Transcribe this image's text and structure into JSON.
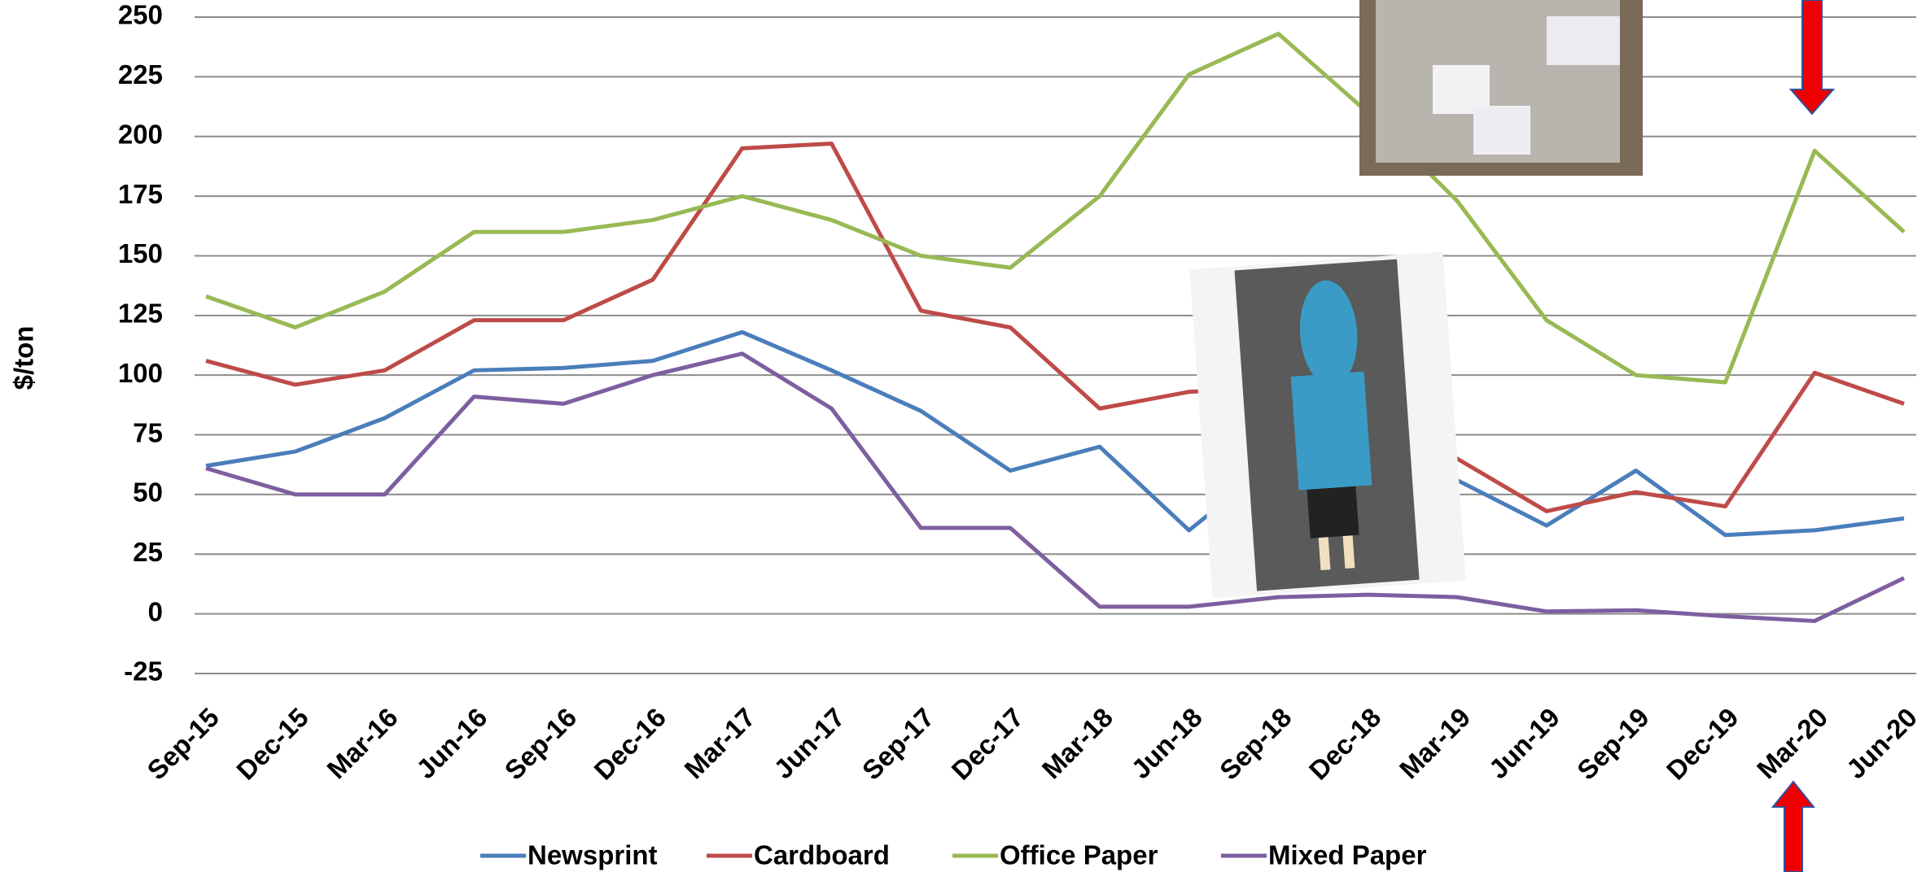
{
  "chart_data": {
    "type": "line",
    "ylabel": "$/ton",
    "categories": [
      "Sep-15",
      "Dec-15",
      "Mar-16",
      "Jun-16",
      "Sep-16",
      "Dec-16",
      "Mar-17",
      "Jun-17",
      "Sep-17",
      "Dec-17",
      "Mar-18",
      "Jun-18",
      "Sep-18",
      "Dec-18",
      "Mar-19",
      "Jun-19",
      "Sep-19",
      "Dec-19",
      "Mar-20",
      "Jun-20"
    ],
    "series": [
      {
        "name": "Newsprint",
        "color": "#4a7ebb",
        "values": [
          62,
          68,
          82,
          102,
          103,
          106,
          118,
          102,
          85,
          60,
          70,
          35,
          65,
          62,
          56,
          37,
          60,
          33,
          35,
          40
        ]
      },
      {
        "name": "Cardboard",
        "color": "#be4b48",
        "values": [
          106,
          96,
          102,
          123,
          123,
          140,
          195,
          197,
          127,
          120,
          86,
          93,
          95,
          85,
          65,
          43,
          51,
          45,
          101,
          88
        ]
      },
      {
        "name": "Office Paper",
        "color": "#98b954",
        "values": [
          133,
          120,
          135,
          160,
          160,
          165,
          175,
          165,
          150,
          145,
          175,
          226,
          243,
          210,
          173,
          123,
          100,
          97,
          194,
          160
        ]
      },
      {
        "name": "Mixed Paper",
        "color": "#7d5fa0",
        "values": [
          61,
          50,
          50,
          91,
          88,
          100,
          109,
          86,
          36,
          36,
          3,
          3,
          7,
          8,
          7,
          1,
          1.5,
          -1,
          -3,
          15
        ]
      }
    ],
    "ylim": [
      -25,
      250
    ],
    "yticks": [
      -25,
      0,
      25,
      50,
      75,
      100,
      125,
      150,
      175,
      200,
      225,
      250
    ],
    "grid": true,
    "legend": "bottom"
  }
}
